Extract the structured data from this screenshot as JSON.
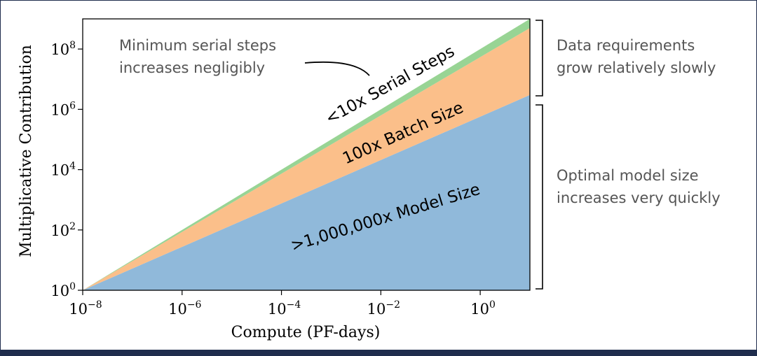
{
  "chart_data": {
    "type": "area",
    "title": "",
    "xlabel": "Compute (PF-days)",
    "ylabel": "Multiplicative Contribution",
    "x_scale": "log",
    "y_scale": "log",
    "xlim": [
      1e-08,
      10
    ],
    "ylim": [
      1,
      1000000000.0
    ],
    "x_ticks": [
      {
        "value": 1e-08,
        "base": "10",
        "exp": "−8"
      },
      {
        "value": 1e-06,
        "base": "10",
        "exp": "−6"
      },
      {
        "value": 0.0001,
        "base": "10",
        "exp": "−4"
      },
      {
        "value": 0.01,
        "base": "10",
        "exp": "−2"
      },
      {
        "value": 1,
        "base": "10",
        "exp": "0"
      }
    ],
    "y_ticks": [
      {
        "value": 1,
        "base": "10",
        "exp": "0"
      },
      {
        "value": 100,
        "base": "10",
        "exp": "2"
      },
      {
        "value": 10000,
        "base": "10",
        "exp": "4"
      },
      {
        "value": 1000000,
        "base": "10",
        "exp": "6"
      },
      {
        "value": 100000000,
        "base": "10",
        "exp": "8"
      }
    ],
    "x": [
      1e-08,
      10
    ],
    "series": [
      {
        "name": ">1,000,000x Model Size",
        "color": "#90b9da",
        "lower": [
          1,
          1
        ],
        "upper": [
          1,
          3000000
        ]
      },
      {
        "name": "100x Batch Size",
        "color": "#fbbf8a",
        "lower": [
          1,
          3000000
        ],
        "upper": [
          1,
          500000000
        ]
      },
      {
        "name": "<10x Serial Steps",
        "color": "#98d494",
        "lower": [
          1,
          500000000
        ],
        "upper": [
          1,
          1000000000
        ]
      }
    ],
    "grid": false,
    "legend": "none"
  },
  "annotations": {
    "serial_note_line1": "Minimum serial steps",
    "serial_note_line2": "increases negligibly",
    "data_note_line1": "Data requirements",
    "data_note_line2": "grow relatively slowly",
    "model_note_line1": "Optimal model size",
    "model_note_line2": "increases very quickly"
  },
  "colors": {
    "model": "#90b9da",
    "batch": "#fbbf8a",
    "serial": "#98d494",
    "note_text": "#555555",
    "axis": "#000000",
    "frame": "#1f2d4d"
  }
}
